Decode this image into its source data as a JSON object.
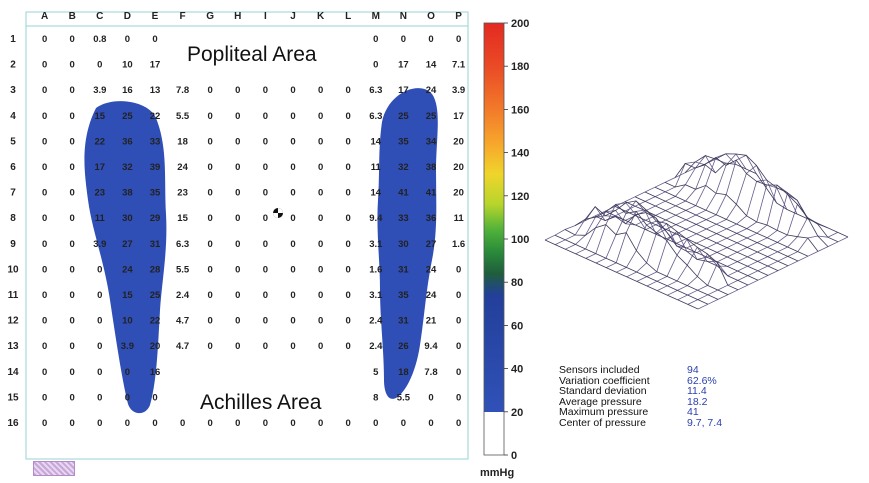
{
  "grid": {
    "columns": [
      "A",
      "B",
      "C",
      "D",
      "E",
      "F",
      "G",
      "H",
      "I",
      "J",
      "K",
      "L",
      "M",
      "N",
      "O",
      "P"
    ],
    "rows": [
      "1",
      "2",
      "3",
      "4",
      "5",
      "6",
      "7",
      "8",
      "9",
      "10",
      "11",
      "12",
      "13",
      "14",
      "15",
      "16"
    ],
    "values": [
      [
        "0",
        "0",
        "0.8",
        "0",
        "0",
        "",
        "",
        "",
        "",
        "",
        "",
        "",
        "0",
        "0",
        "0",
        "0"
      ],
      [
        "0",
        "0",
        "0",
        "10",
        "17",
        "",
        "",
        "",
        "",
        "",
        "",
        "",
        "0",
        "17",
        "14",
        "7.1"
      ],
      [
        "0",
        "0",
        "3.9",
        "16",
        "13",
        "7.8",
        "0",
        "0",
        "0",
        "0",
        "0",
        "0",
        "6.3",
        "17",
        "24",
        "3.9"
      ],
      [
        "0",
        "0",
        "15",
        "25",
        "22",
        "5.5",
        "0",
        "0",
        "0",
        "0",
        "0",
        "0",
        "6.3",
        "25",
        "25",
        "17"
      ],
      [
        "0",
        "0",
        "22",
        "36",
        "33",
        "18",
        "0",
        "0",
        "0",
        "0",
        "0",
        "0",
        "14",
        "35",
        "34",
        "20"
      ],
      [
        "0",
        "0",
        "17",
        "32",
        "39",
        "24",
        "0",
        "0",
        "0",
        "0",
        "0",
        "0",
        "11",
        "32",
        "38",
        "20"
      ],
      [
        "0",
        "0",
        "23",
        "38",
        "35",
        "23",
        "0",
        "0",
        "0",
        "0",
        "0",
        "0",
        "14",
        "41",
        "41",
        "20"
      ],
      [
        "0",
        "0",
        "11",
        "30",
        "29",
        "15",
        "0",
        "0",
        "0",
        "0",
        "0",
        "0",
        "9.4",
        "33",
        "36",
        "11"
      ],
      [
        "0",
        "0",
        "3.9",
        "27",
        "31",
        "6.3",
        "0",
        "0",
        "0",
        "0",
        "0",
        "0",
        "3.1",
        "30",
        "27",
        "1.6"
      ],
      [
        "0",
        "0",
        "0",
        "24",
        "28",
        "5.5",
        "0",
        "0",
        "0",
        "0",
        "0",
        "0",
        "1.6",
        "31",
        "24",
        "0"
      ],
      [
        "0",
        "0",
        "0",
        "15",
        "25",
        "2.4",
        "0",
        "0",
        "0",
        "0",
        "0",
        "0",
        "3.1",
        "35",
        "24",
        "0"
      ],
      [
        "0",
        "0",
        "0",
        "10",
        "22",
        "4.7",
        "0",
        "0",
        "0",
        "0",
        "0",
        "0",
        "2.4",
        "31",
        "21",
        "0"
      ],
      [
        "0",
        "0",
        "0",
        "3.9",
        "20",
        "4.7",
        "0",
        "0",
        "0",
        "0",
        "0",
        "0",
        "2.4",
        "26",
        "9.4",
        "0"
      ],
      [
        "0",
        "0",
        "0",
        "0",
        "16",
        "",
        "",
        "",
        "",
        "",
        "",
        "",
        "5",
        "18",
        "7.8",
        "0"
      ],
      [
        "0",
        "0",
        "0",
        "0",
        "0",
        "",
        "",
        "",
        "",
        "",
        "",
        "",
        "8",
        "5.5",
        "0",
        "0"
      ],
      [
        "0",
        "0",
        "0",
        "0",
        "0",
        "0",
        "0",
        "0",
        "0",
        "0",
        "0",
        "0",
        "0",
        "0",
        "0",
        "0"
      ]
    ]
  },
  "labels": {
    "top_area": "Popliteal Area",
    "bottom_area": "Achilles Area"
  },
  "scale": {
    "ticks": [
      "200",
      "180",
      "160",
      "140",
      "120",
      "100",
      "80",
      "60",
      "40",
      "20",
      "0"
    ],
    "unit": "mmHg"
  },
  "stats": [
    {
      "label": "Sensors included",
      "value": "94"
    },
    {
      "label": "Variation coefficient",
      "value": "62.6%"
    },
    {
      "label": "Standard deviation",
      "value": "11.4"
    },
    {
      "label": "Average pressure",
      "value": "18.2"
    },
    {
      "label": "Maximum pressure",
      "value": "41"
    },
    {
      "label": "Center of pressure",
      "value": "9.7, 7.4"
    }
  ],
  "colors": {
    "blob": "#2f4fb6",
    "scale_bands": [
      "#e8302a",
      "#e8522a",
      "#f07a2a",
      "#f6b12a",
      "#e9de2a",
      "#9ccf2a",
      "#2fa52f",
      "#1e6e2f",
      "#2247a8",
      "#2f4fb6",
      "#ffffff"
    ]
  }
}
